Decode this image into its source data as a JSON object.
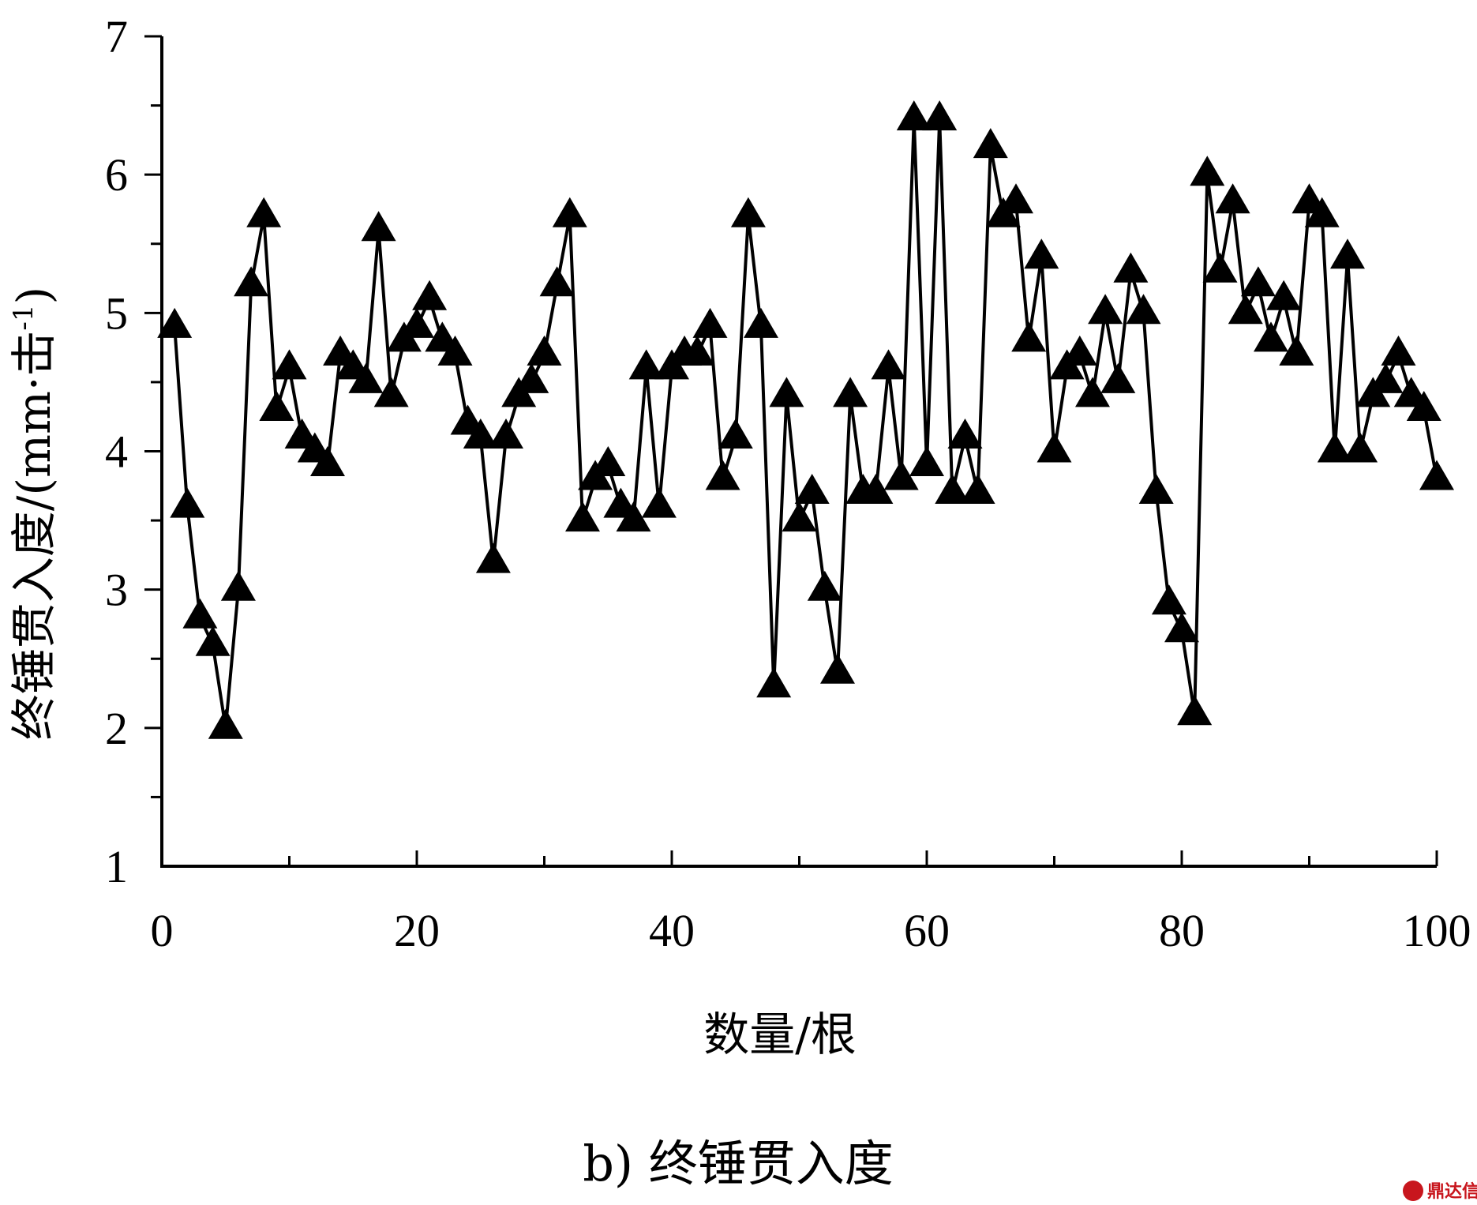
{
  "chart_data": {
    "type": "line",
    "marker": "triangle",
    "xlabel": "数量/根",
    "ylabel": "终锤贯入度/(mm·击",
    "ylabel_sup": "-1",
    "ylabel_close": ")",
    "xlim": [
      0,
      100
    ],
    "ylim": [
      1,
      7
    ],
    "xticks": [
      0,
      20,
      40,
      60,
      80,
      100
    ],
    "yticks": [
      1,
      2,
      3,
      4,
      5,
      6,
      7
    ],
    "grid": false,
    "series": [
      {
        "x": [
          1,
          2,
          3,
          4,
          5,
          6,
          7,
          8,
          9,
          10,
          11,
          12,
          13,
          14,
          15,
          16,
          17,
          18,
          19,
          20,
          21,
          22,
          23,
          24,
          25,
          26,
          27,
          28,
          29,
          30,
          31,
          32,
          33,
          34,
          35,
          36,
          37,
          38,
          39,
          40,
          41,
          42,
          43,
          44,
          45,
          46,
          47,
          48,
          49,
          50,
          51,
          52,
          53,
          54,
          55,
          56,
          57,
          58,
          59,
          60,
          61,
          62,
          63,
          64,
          65,
          66,
          67,
          68,
          69,
          70,
          71,
          72,
          73,
          74,
          75,
          76,
          77,
          78,
          79,
          80,
          81,
          82,
          83,
          84,
          85,
          86,
          87,
          88,
          89,
          90,
          91,
          92,
          93,
          94,
          95,
          96,
          97,
          98,
          99,
          100
        ],
        "y": [
          4.9,
          3.6,
          2.8,
          2.6,
          2.0,
          3.0,
          5.2,
          5.7,
          4.3,
          4.6,
          4.1,
          4.0,
          3.9,
          4.7,
          4.6,
          4.5,
          5.6,
          4.4,
          4.8,
          4.9,
          5.1,
          4.8,
          4.7,
          4.2,
          4.1,
          3.2,
          4.1,
          4.4,
          4.5,
          4.7,
          5.2,
          5.7,
          3.5,
          3.8,
          3.9,
          3.6,
          3.5,
          4.6,
          3.6,
          4.6,
          4.7,
          4.7,
          4.9,
          3.8,
          4.1,
          5.7,
          4.9,
          2.3,
          4.4,
          3.5,
          3.7,
          3.0,
          2.4,
          4.4,
          3.7,
          3.7,
          4.6,
          3.8,
          6.4,
          3.9,
          6.4,
          3.7,
          4.1,
          3.7,
          6.2,
          5.7,
          5.8,
          4.8,
          5.4,
          4.0,
          4.6,
          4.7,
          4.4,
          5.0,
          4.5,
          5.3,
          5.0,
          3.7,
          2.9,
          2.7,
          2.1,
          6.0,
          5.3,
          5.8,
          5.0,
          5.2,
          4.8,
          5.1,
          4.7,
          5.8,
          5.7,
          4.0,
          5.4,
          4.0,
          4.4,
          4.5,
          4.7,
          4.4,
          4.3,
          3.8
        ]
      }
    ]
  },
  "caption": "b) 终锤贯入度",
  "watermark": "鼎达信"
}
